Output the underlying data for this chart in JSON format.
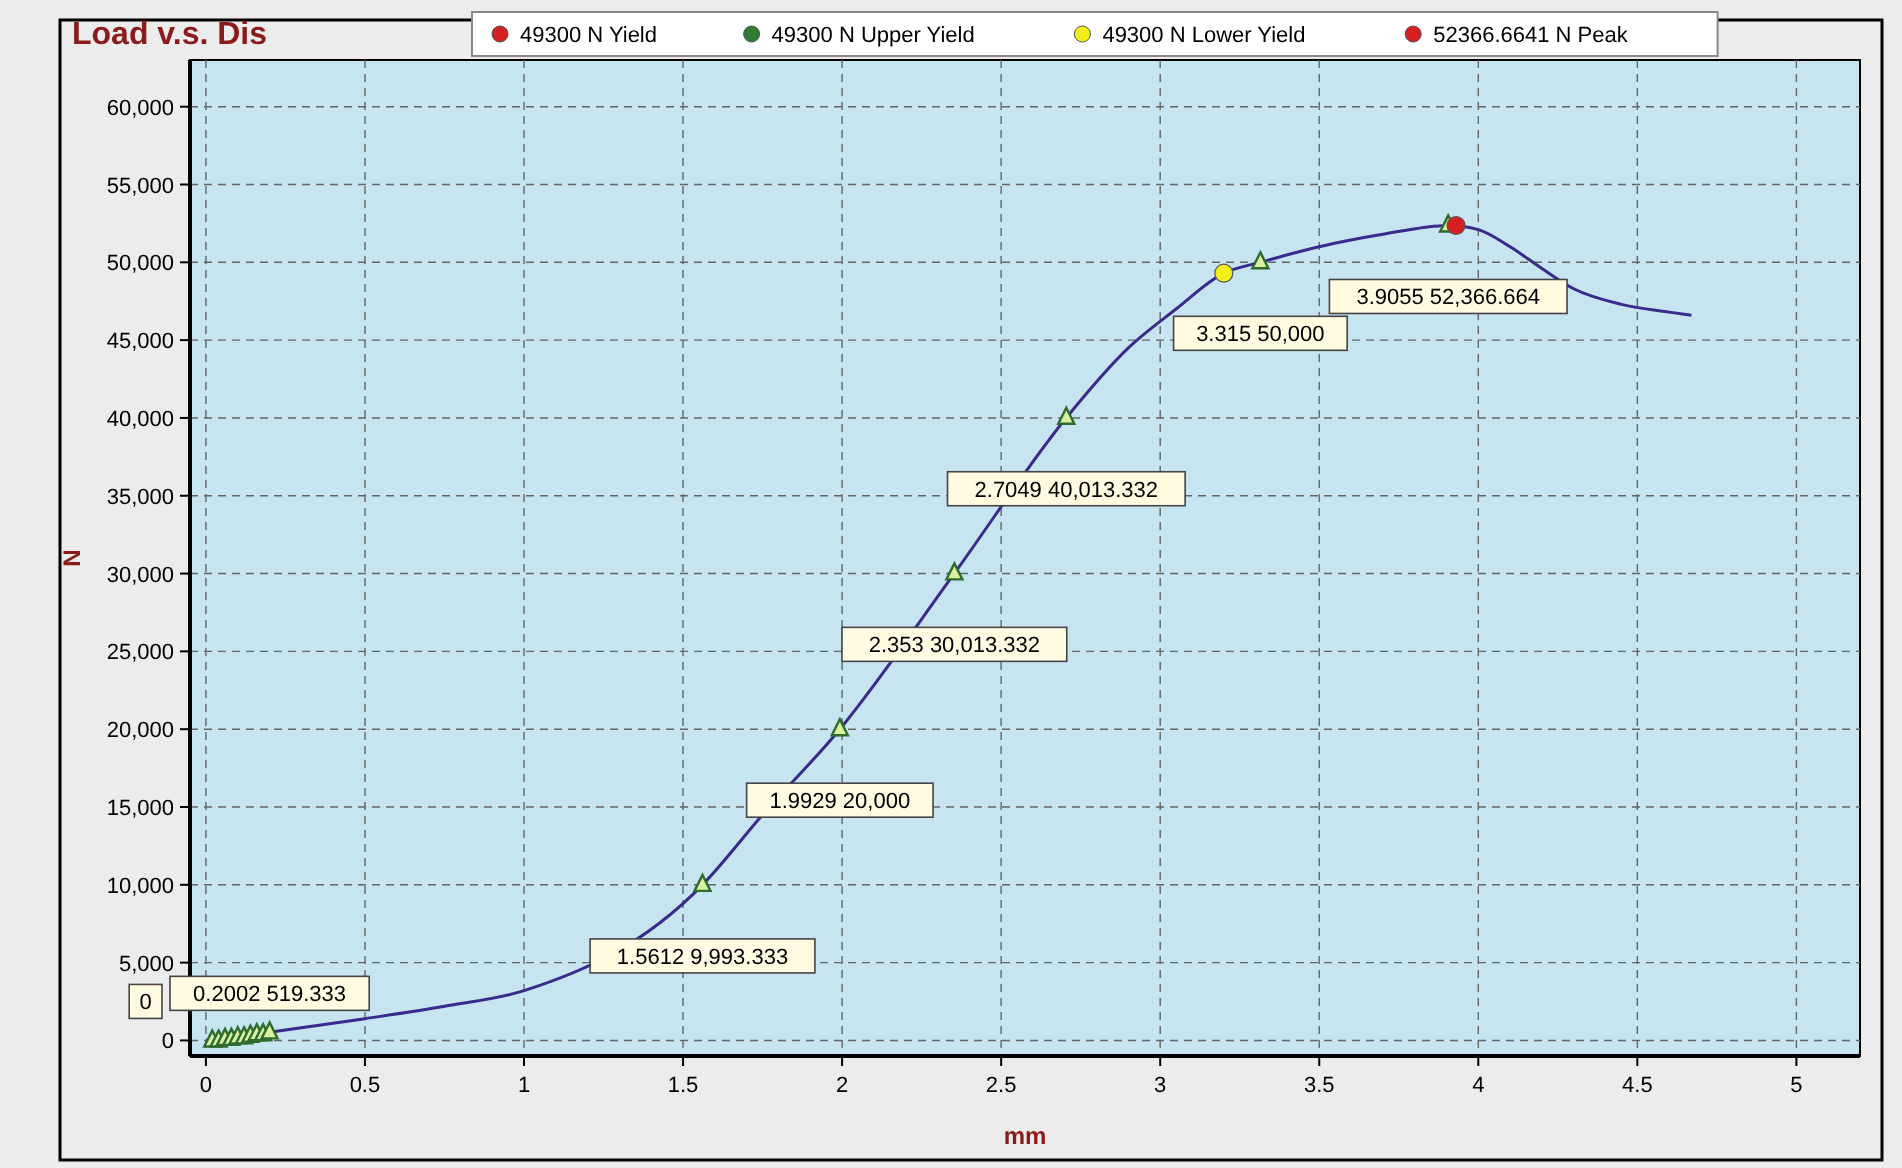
{
  "chart_data": {
    "type": "line",
    "title": "Load v.s. Dis",
    "xlabel": "mm",
    "ylabel": "N",
    "xlim": [
      -0.05,
      5.2
    ],
    "ylim": [
      -1000,
      63000
    ],
    "xticks": [
      0,
      0.5,
      1,
      1.5,
      2,
      2.5,
      3,
      3.5,
      4,
      4.5,
      5
    ],
    "yticks": [
      {
        "value": 0,
        "label": "0"
      },
      {
        "value": 5000,
        "label": "5,000"
      },
      {
        "value": 10000,
        "label": "10,000"
      },
      {
        "value": 15000,
        "label": "15,000"
      },
      {
        "value": 20000,
        "label": "20,000"
      },
      {
        "value": 25000,
        "label": "25,000"
      },
      {
        "value": 30000,
        "label": "30,000"
      },
      {
        "value": 35000,
        "label": "35,000"
      },
      {
        "value": 40000,
        "label": "40,000"
      },
      {
        "value": 45000,
        "label": "45,000"
      },
      {
        "value": 50000,
        "label": "50,000"
      },
      {
        "value": 55000,
        "label": "55,000"
      },
      {
        "value": 60000,
        "label": "60,000"
      }
    ],
    "grid": true,
    "legend": "top",
    "series": [
      {
        "color": "#3a2a8c",
        "marker": "none",
        "x": [
          0,
          0.1,
          0.2002,
          0.5,
          0.75,
          1.0,
          1.5612,
          1.75,
          1.9929,
          2.353,
          2.7049,
          2.9,
          3.05,
          3.2,
          3.315,
          3.5,
          3.7,
          3.9055,
          4.0,
          4.1,
          4.2,
          4.3,
          4.45,
          4.6,
          4.67
        ],
        "values": [
          0,
          250,
          519.333,
          1400,
          2200,
          3200,
          9993.333,
          14500,
          20000,
          30013.332,
          40013.332,
          44500,
          47000,
          49300,
          50000,
          51000,
          51800,
          52366.664,
          52100,
          51000,
          49600,
          48300,
          47300,
          46800,
          46600
        ]
      },
      {
        "type": "scatter",
        "color": "#2e6b2e",
        "marker": "triangle",
        "x": [
          0.02,
          0.04,
          0.06,
          0.08,
          0.1,
          0.12,
          0.14,
          0.16,
          0.18,
          0.2002,
          1.5612,
          1.9929,
          2.353,
          2.7049,
          3.315,
          3.9055
        ],
        "values": [
          0,
          0,
          100,
          100,
          200,
          200,
          300,
          400,
          400,
          519.333,
          9993.333,
          20000,
          30013.332,
          40013.332,
          50000,
          52366.664
        ]
      },
      {
        "type": "scatter",
        "name": "49300 N Yield",
        "color": "#d42020",
        "marker": "circle"
      },
      {
        "type": "scatter",
        "name": "49300 N Upper Yield",
        "color": "#2e7d32",
        "marker": "circle"
      },
      {
        "type": "scatter",
        "name": "49300 N Lower Yield",
        "color": "#f2ee1c",
        "marker": "circle",
        "x": [
          3.2
        ],
        "values": [
          49300
        ]
      },
      {
        "type": "scatter",
        "name": "52366.6641 N Peak",
        "color": "#d42020",
        "marker": "circle",
        "x": [
          3.93
        ],
        "values": [
          52366.6641
        ]
      }
    ],
    "annotations": [
      {
        "text": "0",
        "x": 0,
        "y": 0
      },
      {
        "text": "0.2002 519.333",
        "x": 0.2002,
        "y": 519.333
      },
      {
        "text": "1.5612 9,993.333",
        "x": 1.5612,
        "y": 9993.333
      },
      {
        "text": "1.9929 20,000",
        "x": 1.9929,
        "y": 20000
      },
      {
        "text": "2.353 30,013.332",
        "x": 2.353,
        "y": 30013.332
      },
      {
        "text": "2.7049 40,013.332",
        "x": 2.7049,
        "y": 40013.332
      },
      {
        "text": "3.315 50,000",
        "x": 3.315,
        "y": 50000
      },
      {
        "text": "3.9055 52,366.664",
        "x": 3.9055,
        "y": 52366.664
      }
    ]
  }
}
